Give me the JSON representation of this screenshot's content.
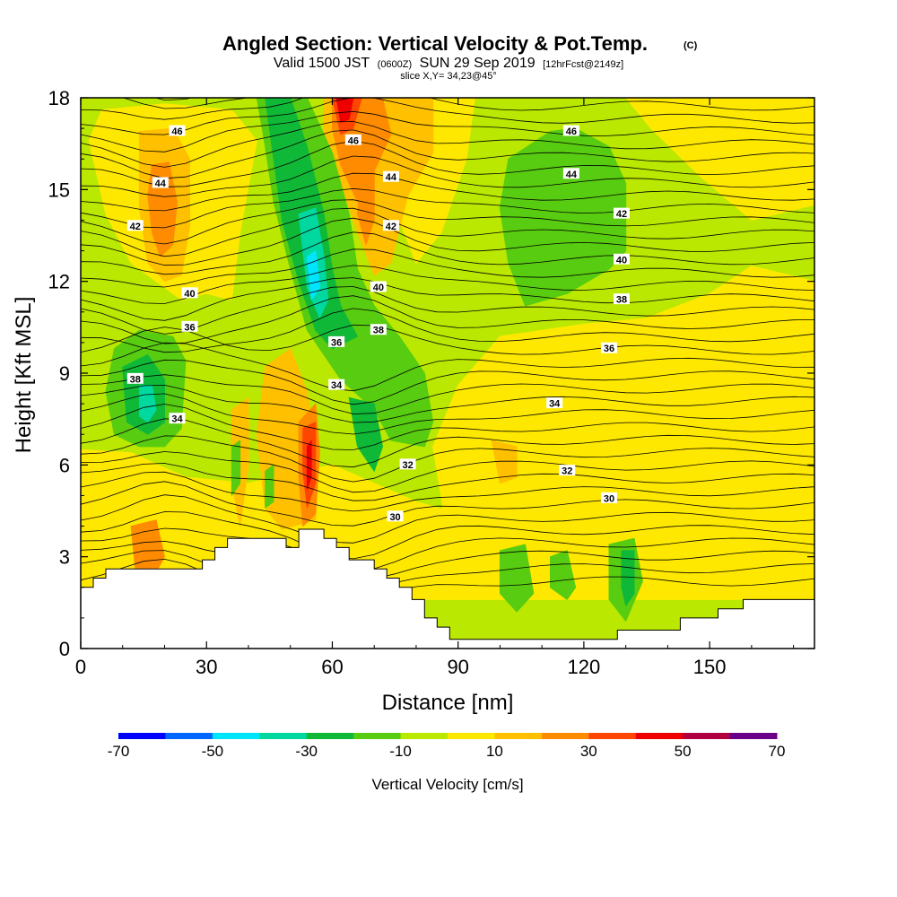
{
  "title": {
    "main": "Angled Section: Vertical Velocity & Pot.Temp.",
    "main_suffix": "(C)",
    "valid_prefix": "Valid 1500 JST",
    "valid_utc": "(0600Z)",
    "valid_date": "SUN 29 Sep 2019",
    "forecast": "[12hrFcst@2149z]",
    "slice": "slice X,Y= 34,23@45°"
  },
  "chart_data": {
    "type": "heatmap",
    "xlabel": "Distance [nm]",
    "ylabel": "Height [Kft MSL]",
    "xlim": [
      0,
      175
    ],
    "ylim": [
      0,
      18
    ],
    "x_ticks": [
      "0",
      "30",
      "60",
      "90",
      "120",
      "150"
    ],
    "y_ticks": [
      "0",
      "3",
      "6",
      "9",
      "12",
      "15",
      "18"
    ],
    "grid": false,
    "colorbar": {
      "title": "Vertical Velocity [cm/s]",
      "labels": [
        "-70",
        "-50",
        "-30",
        "-10",
        "10",
        "30",
        "50",
        "70"
      ],
      "range": [
        -70,
        70
      ],
      "step": 10,
      "colors": [
        "#0000ff",
        "#0066ff",
        "#00e5ff",
        "#00d8a0",
        "#10b838",
        "#58cc10",
        "#bbe800",
        "#ffe800",
        "#ffc000",
        "#ff8c00",
        "#ff4600",
        "#ee0000",
        "#b00040",
        "#6a0088"
      ]
    },
    "terrain": [
      [
        0,
        2.0
      ],
      [
        3,
        2.0
      ],
      [
        3,
        2.3
      ],
      [
        6,
        2.3
      ],
      [
        6,
        2.6
      ],
      [
        29,
        2.6
      ],
      [
        29,
        2.9
      ],
      [
        32,
        2.9
      ],
      [
        32,
        3.3
      ],
      [
        35,
        3.3
      ],
      [
        35,
        3.6
      ],
      [
        49,
        3.6
      ],
      [
        49,
        3.3
      ],
      [
        52,
        3.3
      ],
      [
        52,
        3.9
      ],
      [
        58,
        3.9
      ],
      [
        58,
        3.6
      ],
      [
        61,
        3.6
      ],
      [
        61,
        3.3
      ],
      [
        64,
        3.3
      ],
      [
        64,
        2.9
      ],
      [
        70,
        2.9
      ],
      [
        70,
        2.6
      ],
      [
        73,
        2.6
      ],
      [
        73,
        2.3
      ],
      [
        76,
        2.3
      ],
      [
        76,
        2.0
      ],
      [
        79,
        2.0
      ],
      [
        79,
        1.6
      ],
      [
        82,
        1.6
      ],
      [
        82,
        1.0
      ],
      [
        85,
        1.0
      ],
      [
        85,
        0.7
      ],
      [
        88,
        0.7
      ],
      [
        88,
        0.3
      ],
      [
        91,
        0.3
      ],
      [
        91,
        0.3
      ],
      [
        128,
        0.3
      ],
      [
        128,
        0.6
      ],
      [
        143,
        0.6
      ],
      [
        143,
        1.0
      ],
      [
        152,
        1.0
      ],
      [
        152,
        1.3
      ],
      [
        158,
        1.3
      ],
      [
        158,
        1.6
      ],
      [
        175,
        1.6
      ]
    ],
    "theta_contours": [
      {
        "value": 30,
        "label_x": 75,
        "label_y": 4.3
      },
      {
        "value": 30,
        "label_x": 126,
        "label_y": 4.9
      },
      {
        "value": 32,
        "label_x": 78,
        "label_y": 6.0
      },
      {
        "value": 32,
        "label_x": 116,
        "label_y": 5.8
      },
      {
        "value": 34,
        "label_x": 23,
        "label_y": 7.5
      },
      {
        "value": 34,
        "label_x": 61,
        "label_y": 8.6
      },
      {
        "value": 34,
        "label_x": 113,
        "label_y": 8.0
      },
      {
        "value": 36,
        "label_x": 26,
        "label_y": 10.5
      },
      {
        "value": 36,
        "label_x": 61,
        "label_y": 10.0
      },
      {
        "value": 36,
        "label_x": 126,
        "label_y": 9.8
      },
      {
        "value": 38,
        "label_x": 13,
        "label_y": 8.8
      },
      {
        "value": 38,
        "label_x": 71,
        "label_y": 10.4
      },
      {
        "value": 38,
        "label_x": 129,
        "label_y": 11.4
      },
      {
        "value": 40,
        "label_x": 26,
        "label_y": 11.6
      },
      {
        "value": 40,
        "label_x": 71,
        "label_y": 11.8
      },
      {
        "value": 40,
        "label_x": 129,
        "label_y": 12.7
      },
      {
        "value": 42,
        "label_x": 13,
        "label_y": 13.8
      },
      {
        "value": 42,
        "label_x": 74,
        "label_y": 13.8
      },
      {
        "value": 42,
        "label_x": 129,
        "label_y": 14.2
      },
      {
        "value": 44,
        "label_x": 19,
        "label_y": 15.2
      },
      {
        "value": 44,
        "label_x": 74,
        "label_y": 15.4
      },
      {
        "value": 44,
        "label_x": 117,
        "label_y": 15.5
      },
      {
        "value": 46,
        "label_x": 23,
        "label_y": 16.9
      },
      {
        "value": 46,
        "label_x": 65,
        "label_y": 16.6
      },
      {
        "value": 46,
        "label_x": 117,
        "label_y": 16.9
      }
    ]
  }
}
